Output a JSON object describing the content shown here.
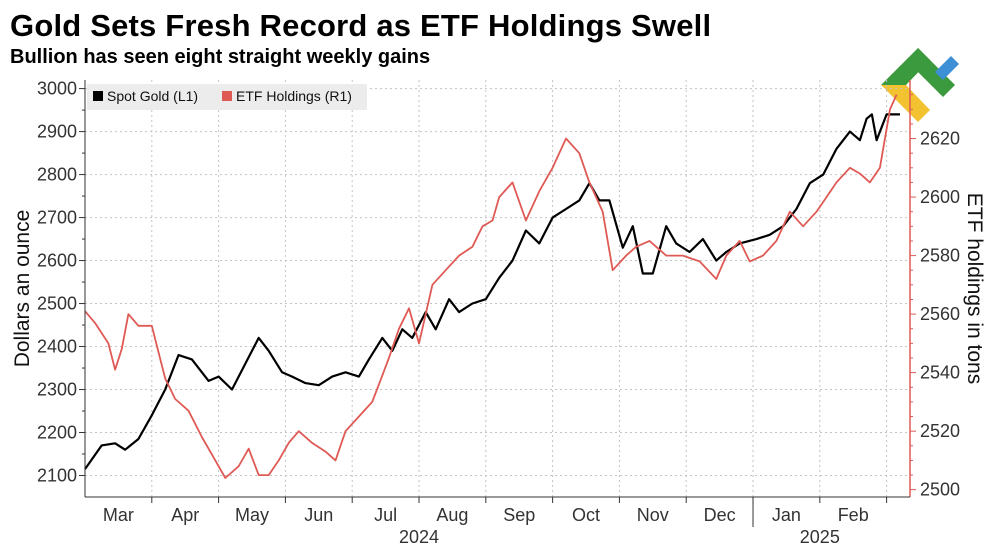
{
  "title": "Gold Sets Fresh Record as ETF Holdings Swell",
  "subtitle": "Bullion has seen eight straight weekly gains",
  "colors": {
    "gold_line": "#000000",
    "etf_line": "#e05a55",
    "grid": "#bdbdbd",
    "right_axis": "#e05a55"
  },
  "logo": {
    "icon": "brand-logo-icon"
  },
  "chart_data": {
    "type": "line",
    "title": "Gold Sets Fresh Record as ETF Holdings Swell",
    "subtitle": "Bullion has seen eight straight weekly gains",
    "ylabel": "Dollars an ounce",
    "y2label": "ETF holdings in tons",
    "ylim": [
      2050,
      3020
    ],
    "y2lim": [
      2497.5,
      2640
    ],
    "yticks": [
      2100,
      2200,
      2300,
      2400,
      2500,
      2600,
      2700,
      2800,
      2900,
      3000
    ],
    "y2ticks": [
      2500,
      2520,
      2540,
      2560,
      2580,
      2600,
      2620
    ],
    "xlim": [
      0,
      12.35
    ],
    "month_ticks": [
      {
        "label": "Mar",
        "x": 0.5
      },
      {
        "label": "Apr",
        "x": 1.5
      },
      {
        "label": "May",
        "x": 2.5
      },
      {
        "label": "Jun",
        "x": 3.5
      },
      {
        "label": "Jul",
        "x": 4.5
      },
      {
        "label": "Aug",
        "x": 5.5
      },
      {
        "label": "Sep",
        "x": 6.5
      },
      {
        "label": "Oct",
        "x": 7.5
      },
      {
        "label": "Nov",
        "x": 8.5
      },
      {
        "label": "Dec",
        "x": 9.5
      },
      {
        "label": "Jan",
        "x": 10.5
      },
      {
        "label": "Feb",
        "x": 11.5
      }
    ],
    "year_labels": [
      {
        "label": "2024",
        "x": 5.0
      },
      {
        "label": "2025",
        "x": 11.0
      }
    ],
    "grid": true,
    "legend": {
      "position": "top-left"
    },
    "series": [
      {
        "name": "Spot Gold (L1)",
        "axis": "left",
        "color": "#000000",
        "x": [
          0.0,
          0.25,
          0.45,
          0.6,
          0.8,
          1.0,
          1.2,
          1.4,
          1.6,
          1.85,
          2.0,
          2.2,
          2.4,
          2.6,
          2.75,
          2.95,
          3.1,
          3.3,
          3.5,
          3.7,
          3.9,
          4.1,
          4.25,
          4.45,
          4.6,
          4.75,
          4.9,
          5.1,
          5.25,
          5.45,
          5.6,
          5.8,
          6.0,
          6.2,
          6.4,
          6.6,
          6.8,
          7.0,
          7.2,
          7.4,
          7.55,
          7.7,
          7.85,
          8.05,
          8.2,
          8.35,
          8.5,
          8.7,
          8.85,
          9.05,
          9.25,
          9.45,
          9.6,
          9.8,
          10.05,
          10.25,
          10.45,
          10.65,
          10.85,
          11.05,
          11.25,
          11.45,
          11.6,
          11.7,
          11.78,
          11.85,
          12.0,
          12.1,
          12.2
        ],
        "values": [
          2115,
          2170,
          2175,
          2160,
          2185,
          2240,
          2300,
          2380,
          2370,
          2320,
          2330,
          2300,
          2360,
          2420,
          2390,
          2340,
          2330,
          2315,
          2310,
          2330,
          2340,
          2330,
          2370,
          2420,
          2390,
          2440,
          2420,
          2480,
          2440,
          2510,
          2480,
          2500,
          2510,
          2560,
          2600,
          2670,
          2640,
          2700,
          2720,
          2740,
          2780,
          2740,
          2740,
          2630,
          2680,
          2570,
          2570,
          2680,
          2640,
          2620,
          2650,
          2600,
          2620,
          2640,
          2650,
          2660,
          2680,
          2720,
          2780,
          2800,
          2860,
          2900,
          2880,
          2930,
          2940,
          2880,
          2940,
          2940,
          2940
        ]
      },
      {
        "name": "ETF Holdings (R1)",
        "axis": "right",
        "color": "#e05a55",
        "x": [
          0.0,
          0.15,
          0.35,
          0.45,
          0.55,
          0.65,
          0.8,
          1.0,
          1.2,
          1.35,
          1.55,
          1.75,
          1.95,
          2.1,
          2.3,
          2.45,
          2.6,
          2.75,
          2.9,
          3.05,
          3.2,
          3.4,
          3.6,
          3.75,
          3.9,
          4.1,
          4.3,
          4.45,
          4.55,
          4.7,
          4.85,
          5.0,
          5.2,
          5.4,
          5.6,
          5.8,
          5.95,
          6.1,
          6.2,
          6.4,
          6.6,
          6.8,
          7.0,
          7.2,
          7.4,
          7.55,
          7.75,
          7.9,
          8.1,
          8.25,
          8.45,
          8.7,
          8.95,
          9.2,
          9.45,
          9.6,
          9.8,
          9.95,
          10.15,
          10.35,
          10.55,
          10.75,
          10.95,
          11.1,
          11.25,
          11.45,
          11.6,
          11.75,
          11.9,
          12.05,
          12.15
        ],
        "values": [
          2561,
          2557,
          2550,
          2541,
          2548,
          2560,
          2556,
          2556,
          2538,
          2531,
          2527,
          2518,
          2510,
          2504,
          2508,
          2514,
          2505,
          2505,
          2510,
          2516,
          2520,
          2516,
          2513,
          2510,
          2520,
          2525,
          2530,
          2539,
          2545,
          2555,
          2562,
          2550,
          2570,
          2575,
          2580,
          2583,
          2590,
          2592,
          2600,
          2605,
          2592,
          2602,
          2610,
          2620,
          2615,
          2605,
          2595,
          2575,
          2580,
          2583,
          2585,
          2580,
          2580,
          2578,
          2572,
          2580,
          2585,
          2578,
          2580,
          2585,
          2595,
          2590,
          2595,
          2600,
          2605,
          2610,
          2608,
          2605,
          2610,
          2630,
          2635
        ]
      }
    ]
  }
}
